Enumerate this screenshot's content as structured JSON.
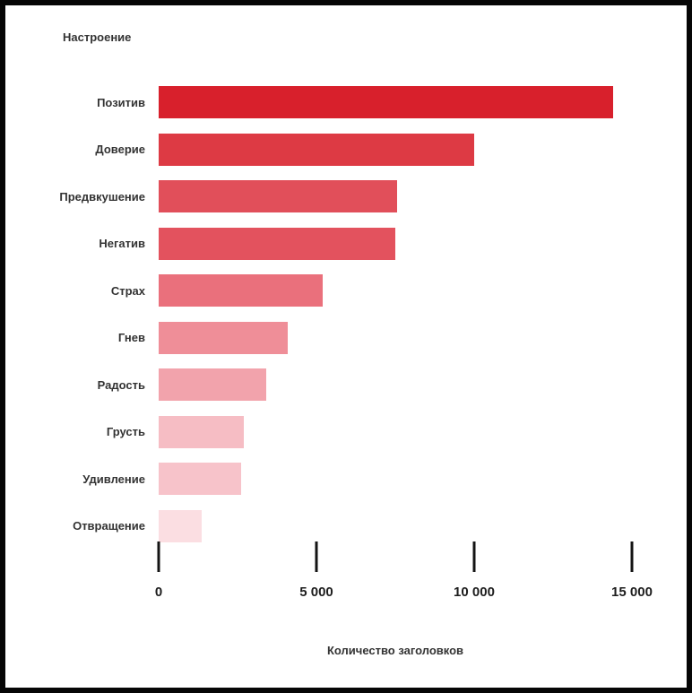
{
  "frame": {
    "outer_background": "#060606",
    "canvas_background": "#ffffff"
  },
  "chart_data": {
    "type": "bar",
    "orientation": "horizontal",
    "title": "",
    "ylabel": "Настроение",
    "xlabel": "Количество заголовков",
    "categories": [
      "Позитив",
      "Доверие",
      "Предвкушение",
      "Негатив",
      "Страх",
      "Гнев",
      "Радость",
      "Грусть",
      "Удивление",
      "Отвращение"
    ],
    "values": [
      14400,
      10000,
      7550,
      7500,
      5200,
      4100,
      3400,
      2700,
      2600,
      1350
    ],
    "colors": [
      "#d8202c",
      "#dd3a44",
      "#e14f5a",
      "#e3525e",
      "#ea707c",
      "#ef8e98",
      "#f2a3ac",
      "#f6bdc4",
      "#f7c3ca",
      "#fbdee2"
    ],
    "x_ticks": [
      0,
      5000,
      10000,
      15000
    ],
    "x_tick_labels": [
      "0",
      "5 000",
      "10 000",
      "15 000"
    ],
    "xlim": [
      0,
      15000
    ],
    "grid": false,
    "legend": false,
    "text_color": "#333333",
    "tick_color": "#141414"
  }
}
